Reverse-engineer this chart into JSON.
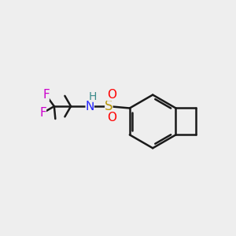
{
  "bg_color": "#eeeeee",
  "bond_color": "#1a1a1a",
  "bond_width": 1.8,
  "atoms": {
    "S": {
      "color": "#b8960a",
      "fontsize": 12
    },
    "O": {
      "color": "#ff0000",
      "fontsize": 11
    },
    "N": {
      "color": "#2222ff",
      "fontsize": 11
    },
    "H": {
      "color": "#3a8a8a",
      "fontsize": 10
    },
    "F": {
      "color": "#cc00cc",
      "fontsize": 11
    }
  },
  "figsize": [
    3.0,
    3.0
  ],
  "dpi": 100
}
